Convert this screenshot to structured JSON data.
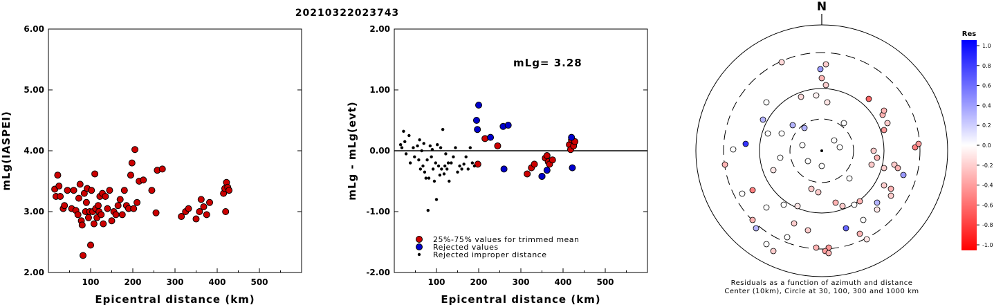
{
  "title": "20210322023743",
  "chart_data": [
    {
      "type": "scatter",
      "xlabel": "Epicentral distance (km)",
      "ylabel": "mLg(IASPEI)",
      "xlim": [
        0,
        600
      ],
      "ylim": [
        2.0,
        6.0
      ],
      "xticks": [
        "100",
        "200",
        "300",
        "400",
        "500"
      ],
      "yticks": [
        "2.00",
        "3.00",
        "4.00",
        "5.00",
        "6.00"
      ],
      "series": [
        {
          "color": "#cc0000",
          "points": [
            [
              15,
              3.37
            ],
            [
              18,
              3.25
            ],
            [
              22,
              3.6
            ],
            [
              25,
              3.42
            ],
            [
              28,
              3.25
            ],
            [
              35,
              3.05
            ],
            [
              38,
              3.1
            ],
            [
              45,
              3.35
            ],
            [
              55,
              3.05
            ],
            [
              60,
              3.35
            ],
            [
              65,
              3.02
            ],
            [
              70,
              2.95
            ],
            [
              72,
              3.22
            ],
            [
              75,
              3.45
            ],
            [
              78,
              2.85
            ],
            [
              80,
              2.78
            ],
            [
              82,
              2.28
            ],
            [
              85,
              3.3
            ],
            [
              88,
              3.0
            ],
            [
              90,
              3.15
            ],
            [
              92,
              3.38
            ],
            [
              95,
              2.9
            ],
            [
              98,
              3.0
            ],
            [
              100,
              2.45
            ],
            [
              102,
              3.35
            ],
            [
              105,
              3.0
            ],
            [
              108,
              2.8
            ],
            [
              110,
              3.62
            ],
            [
              112,
              3.05
            ],
            [
              115,
              2.9
            ],
            [
              118,
              3.1
            ],
            [
              120,
              3.0
            ],
            [
              122,
              3.25
            ],
            [
              125,
              2.95
            ],
            [
              128,
              3.3
            ],
            [
              130,
              2.8
            ],
            [
              135,
              3.25
            ],
            [
              140,
              3.05
            ],
            [
              145,
              3.35
            ],
            [
              150,
              2.85
            ],
            [
              155,
              3.0
            ],
            [
              160,
              2.95
            ],
            [
              165,
              3.1
            ],
            [
              170,
              3.2
            ],
            [
              175,
              2.95
            ],
            [
              180,
              3.35
            ],
            [
              185,
              3.1
            ],
            [
              190,
              3.05
            ],
            [
              195,
              3.6
            ],
            [
              198,
              3.8
            ],
            [
              202,
              3.05
            ],
            [
              205,
              4.02
            ],
            [
              210,
              3.15
            ],
            [
              215,
              3.5
            ],
            [
              225,
              3.52
            ],
            [
              245,
              3.35
            ],
            [
              255,
              2.98
            ],
            [
              258,
              3.68
            ],
            [
              270,
              3.7
            ],
            [
              315,
              2.92
            ],
            [
              325,
              3.0
            ],
            [
              332,
              3.05
            ],
            [
              350,
              2.88
            ],
            [
              358,
              3.0
            ],
            [
              362,
              3.2
            ],
            [
              368,
              3.08
            ],
            [
              375,
              2.95
            ],
            [
              382,
              3.15
            ],
            [
              415,
              3.3
            ],
            [
              418,
              3.38
            ],
            [
              420,
              3.0
            ],
            [
              422,
              3.48
            ],
            [
              425,
              3.4
            ],
            [
              428,
              3.35
            ]
          ]
        }
      ]
    },
    {
      "type": "scatter",
      "xlabel": "Epicentral distance (km)",
      "ylabel": "mLg - mLg(evt)",
      "xlim": [
        0,
        600
      ],
      "ylim": [
        -2.0,
        2.0
      ],
      "xticks": [
        "100",
        "200",
        "300",
        "400",
        "500"
      ],
      "yticks": [
        "-2.00",
        "-1.00",
        "0.00",
        "1.00",
        "2.00"
      ],
      "annotation": "mLg= 3.28",
      "legend": [
        {
          "label": "25%-75% values for trimmed mean",
          "color": "#cc0000"
        },
        {
          "label": "Rejected values",
          "color": "#0000cc"
        },
        {
          "label": "Rejected improper distance",
          "color": "#000000"
        }
      ],
      "series": [
        {
          "name": "25%-75% values for trimmed mean",
          "color": "#cc0000",
          "points": [
            [
              198,
              -0.22
            ],
            [
              215,
              0.2
            ],
            [
              245,
              0.08
            ],
            [
              315,
              -0.38
            ],
            [
              325,
              -0.28
            ],
            [
              332,
              -0.22
            ],
            [
              350,
              -0.42
            ],
            [
              358,
              -0.12
            ],
            [
              362,
              -0.08
            ],
            [
              365,
              -0.18
            ],
            [
              368,
              -0.22
            ],
            [
              375,
              -0.15
            ],
            [
              415,
              0.1
            ],
            [
              418,
              0.02
            ],
            [
              420,
              0.18
            ],
            [
              425,
              0.08
            ],
            [
              428,
              0.15
            ]
          ]
        },
        {
          "name": "Rejected values",
          "color": "#0000cc",
          "points": [
            [
              195,
              0.5
            ],
            [
              200,
              0.75
            ],
            [
              197,
              0.35
            ],
            [
              228,
              0.22
            ],
            [
              258,
              0.4
            ],
            [
              260,
              -0.3
            ],
            [
              270,
              0.42
            ],
            [
              350,
              -0.42
            ],
            [
              362,
              -0.32
            ],
            [
              420,
              0.22
            ],
            [
              422,
              -0.28
            ]
          ]
        },
        {
          "name": "Rejected improper distance",
          "color": "#000000",
          "points": [
            [
              15,
              0.1
            ],
            [
              18,
              0.05
            ],
            [
              22,
              0.32
            ],
            [
              25,
              0.15
            ],
            [
              28,
              -0.05
            ],
            [
              35,
              0.25
            ],
            [
              38,
              -0.2
            ],
            [
              45,
              0.05
            ],
            [
              48,
              -0.1
            ],
            [
              55,
              0.08
            ],
            [
              58,
              -0.15
            ],
            [
              60,
              0.18
            ],
            [
              62,
              -0.3
            ],
            [
              65,
              0.0
            ],
            [
              68,
              -0.25
            ],
            [
              70,
              0.12
            ],
            [
              72,
              -0.35
            ],
            [
              75,
              -0.45
            ],
            [
              78,
              -0.15
            ],
            [
              80,
              -0.98
            ],
            [
              82,
              -0.45
            ],
            [
              85,
              0.08
            ],
            [
              88,
              -0.1
            ],
            [
              90,
              0.02
            ],
            [
              92,
              -0.3
            ],
            [
              95,
              -0.5
            ],
            [
              98,
              -0.2
            ],
            [
              100,
              -0.8
            ],
            [
              102,
              0.1
            ],
            [
              105,
              -0.25
            ],
            [
              108,
              -0.4
            ],
            [
              110,
              0.05
            ],
            [
              112,
              -0.3
            ],
            [
              115,
              0.35
            ],
            [
              118,
              -0.38
            ],
            [
              120,
              -0.25
            ],
            [
              122,
              -0.05
            ],
            [
              125,
              -0.3
            ],
            [
              128,
              -0.2
            ],
            [
              130,
              -0.5
            ],
            [
              135,
              -0.2
            ],
            [
              140,
              -0.1
            ],
            [
              145,
              0.05
            ],
            [
              150,
              -0.35
            ],
            [
              155,
              -0.25
            ],
            [
              160,
              -0.3
            ],
            [
              165,
              -0.22
            ],
            [
              170,
              -0.1
            ],
            [
              175,
              -0.3
            ],
            [
              180,
              0.05
            ],
            [
              185,
              -0.2
            ],
            [
              190,
              -0.25
            ]
          ]
        }
      ]
    },
    {
      "type": "scatter",
      "subtype": "polar",
      "north_label": "N",
      "caption_lines": [
        "Residuals as a function of azimuth and distance",
        "Center (10km), Circle at 30, 100, 300 and 1000 km"
      ],
      "colorbar": {
        "title": "Res",
        "ticks": [
          "1.0",
          "0.8",
          "0.6",
          "0.4",
          "0.2",
          "0.0",
          "-0.2",
          "-0.4",
          "-0.6",
          "-0.8",
          "-1.0"
        ]
      },
      "points": [
        [
          -58,
          -128,
          -0.15
        ],
        [
          -2,
          -118,
          0.4
        ],
        [
          6,
          -125,
          -0.2
        ],
        [
          0,
          -105,
          -0.3
        ],
        [
          6,
          -95,
          -0.2
        ],
        [
          -30,
          -78,
          -0.15
        ],
        [
          -8,
          -80,
          -0.05
        ],
        [
          8,
          -70,
          -0.1
        ],
        [
          -80,
          -70,
          0.0
        ],
        [
          68,
          -75,
          -0.6
        ],
        [
          -78,
          -25,
          0.0
        ],
        [
          -85,
          -45,
          0.3
        ],
        [
          -25,
          -33,
          0.3
        ],
        [
          32,
          -40,
          0.0
        ],
        [
          88,
          -52,
          -0.3
        ],
        [
          -58,
          -25,
          0.0
        ],
        [
          90,
          -58,
          -0.3
        ],
        [
          -42,
          -37,
          0.3
        ],
        [
          95,
          -40,
          -0.2
        ],
        [
          90,
          -30,
          -0.4
        ],
        [
          -128,
          -2,
          0.0
        ],
        [
          -110,
          -10,
          0.8
        ],
        [
          -28,
          -8,
          0.0
        ],
        [
          -20,
          15,
          0.0
        ],
        [
          18,
          -15,
          0.0
        ],
        [
          26,
          -5,
          0.0
        ],
        [
          75,
          0,
          -0.2
        ],
        [
          135,
          -5,
          -0.5
        ],
        [
          140,
          -10,
          -0.4
        ],
        [
          -140,
          20,
          -0.3
        ],
        [
          -60,
          10,
          0.0
        ],
        [
          -70,
          28,
          -0.1
        ],
        [
          0,
          22,
          0.0
        ],
        [
          40,
          40,
          0.0
        ],
        [
          72,
          20,
          -0.2
        ],
        [
          80,
          10,
          -0.3
        ],
        [
          90,
          25,
          -0.2
        ],
        [
          105,
          20,
          -0.2
        ],
        [
          110,
          25,
          -0.3
        ],
        [
          118,
          35,
          0.4
        ],
        [
          -100,
          57,
          -0.5
        ],
        [
          -115,
          62,
          0.0
        ],
        [
          90,
          50,
          -0.2
        ],
        [
          100,
          55,
          -0.3
        ],
        [
          100,
          65,
          -0.2
        ],
        [
          -80,
          82,
          0.0
        ],
        [
          -55,
          78,
          0.0
        ],
        [
          -35,
          80,
          -0.1
        ],
        [
          -15,
          55,
          -0.2
        ],
        [
          -5,
          60,
          -0.2
        ],
        [
          20,
          75,
          -0.3
        ],
        [
          30,
          80,
          -0.2
        ],
        [
          47,
          78,
          0.0
        ],
        [
          55,
          73,
          -0.3
        ],
        [
          80,
          75,
          0.3
        ],
        [
          80,
          85,
          -0.1
        ],
        [
          -100,
          100,
          -0.3
        ],
        [
          -95,
          112,
          0.3
        ],
        [
          -80,
          135,
          0.0
        ],
        [
          -50,
          125,
          0.0
        ],
        [
          -40,
          105,
          -0.2
        ],
        [
          -20,
          115,
          -0.2
        ],
        [
          -8,
          140,
          -0.3
        ],
        [
          10,
          140,
          -0.4
        ],
        [
          35,
          112,
          0.6
        ],
        [
          55,
          120,
          -0.3
        ],
        [
          60,
          100,
          0.0
        ],
        [
          65,
          128,
          -0.1
        ],
        [
          -70,
          145,
          -0.2
        ],
        [
          5,
          145,
          -0.4
        ],
        [
          10,
          148,
          -0.3
        ]
      ]
    }
  ]
}
